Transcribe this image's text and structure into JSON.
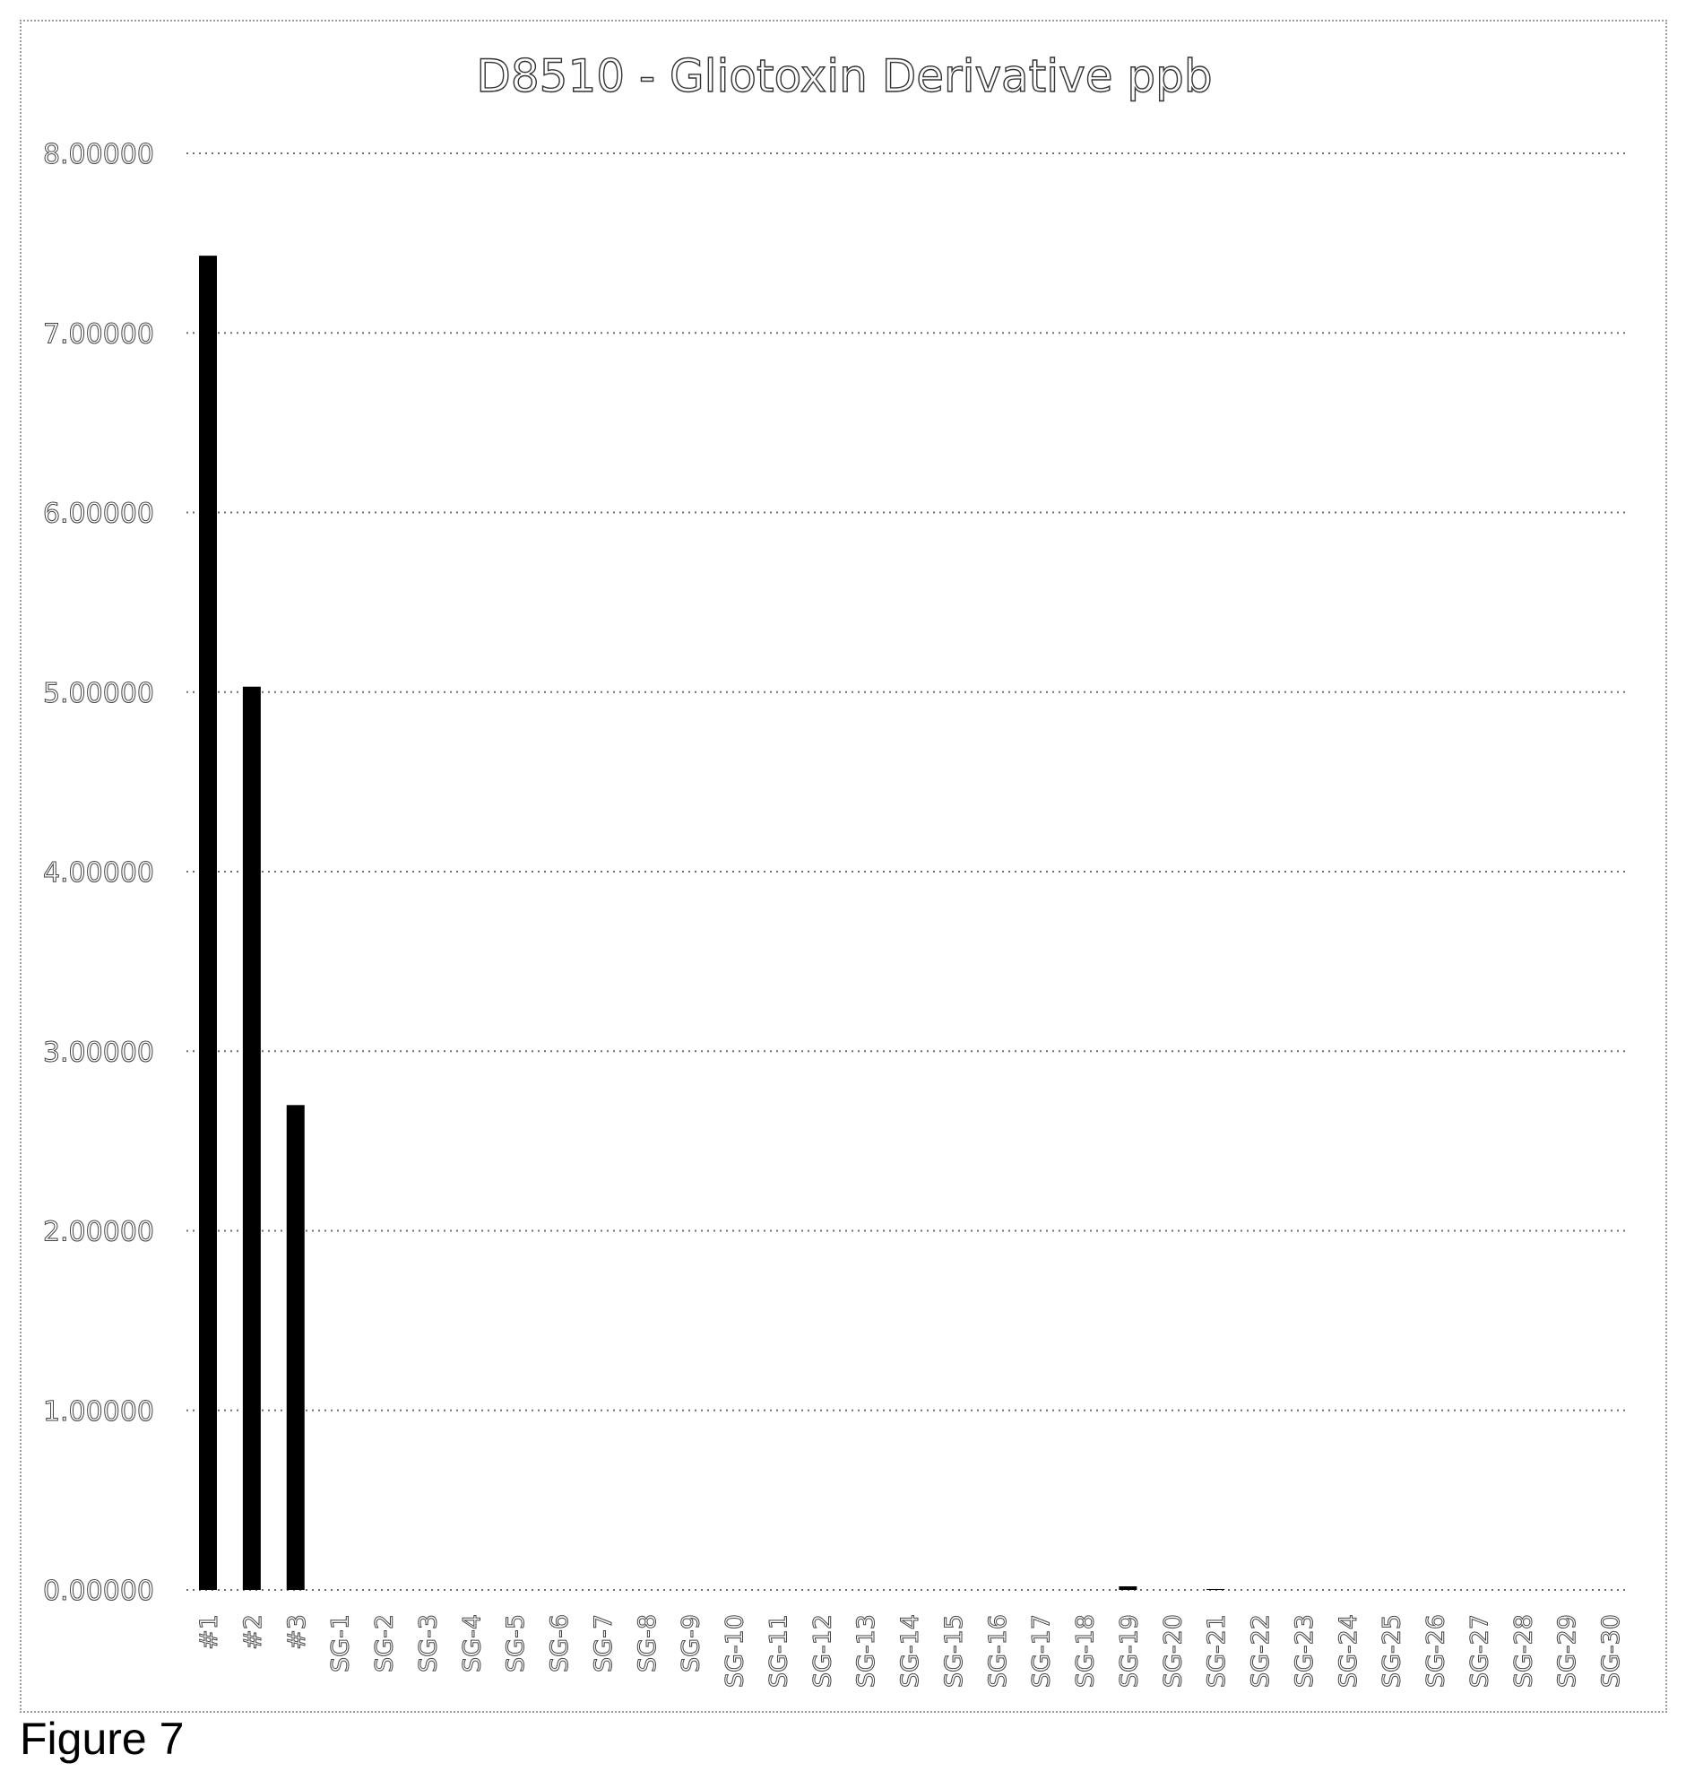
{
  "caption": "Figure 7",
  "chart_data": {
    "type": "bar",
    "title": "D8510 - Gliotoxin Derivative ppb",
    "xlabel": "",
    "ylabel": "",
    "ylim": [
      0,
      8
    ],
    "yticks": [
      "0.00000",
      "1.00000",
      "2.00000",
      "3.00000",
      "4.00000",
      "5.00000",
      "6.00000",
      "7.00000",
      "8.00000"
    ],
    "grid": true,
    "grid_style": "dotted",
    "bar_color": "#000000",
    "categories": [
      "#1",
      "#2",
      "#3",
      "SG-1",
      "SG-2",
      "SG-3",
      "SG-4",
      "SG-5",
      "SG-6",
      "SG-7",
      "SG-8",
      "SG-9",
      "SG-10",
      "SG-11",
      "SG-12",
      "SG-13",
      "SG-14",
      "SG-15",
      "SG-16",
      "SG-17",
      "SG-18",
      "SG-19",
      "SG-20",
      "SG-21",
      "SG-22",
      "SG-23",
      "SG-24",
      "SG-25",
      "SG-26",
      "SG-27",
      "SG-28",
      "SG-29",
      "SG-30"
    ],
    "values": [
      7.43,
      5.03,
      2.7,
      0,
      0,
      0,
      0,
      0,
      0,
      0,
      0,
      0,
      0,
      0,
      0,
      0,
      0,
      0,
      0,
      0,
      0,
      0.02,
      0,
      0.005,
      0,
      0,
      0,
      0,
      0,
      0,
      0,
      0,
      0
    ]
  }
}
